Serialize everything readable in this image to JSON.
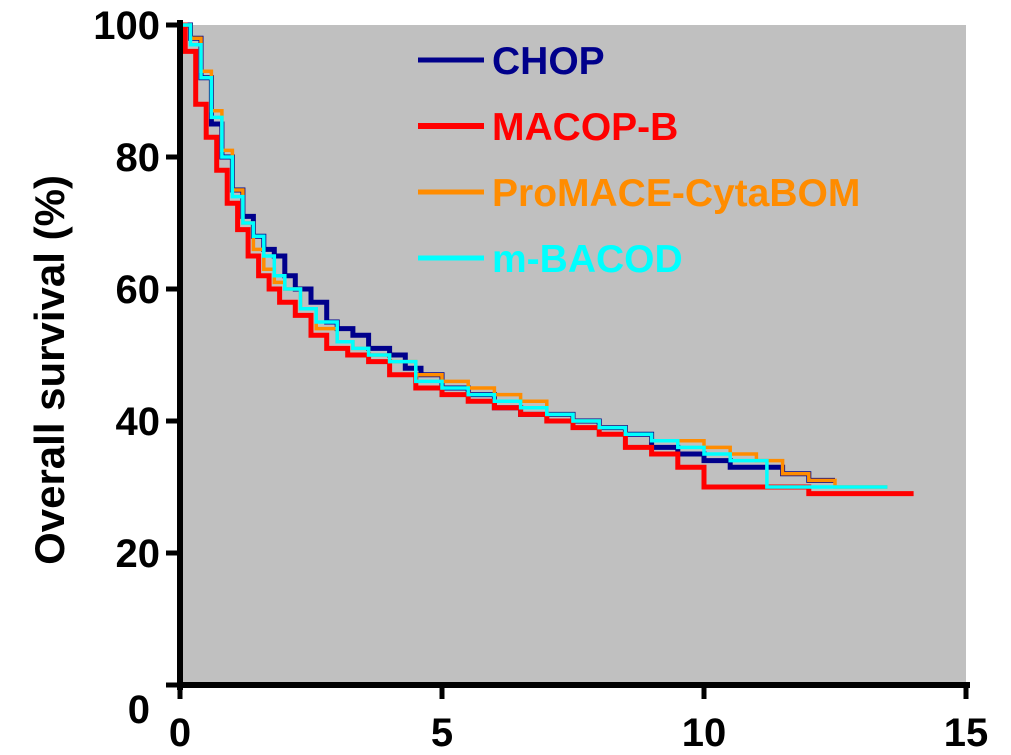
{
  "chart_data": {
    "type": "line",
    "step": true,
    "ylabel": "Overall survival (%)",
    "xlabel": "",
    "xlim": [
      0,
      15
    ],
    "ylim": [
      0,
      100
    ],
    "xticks": [
      "0",
      "5",
      "10",
      "15"
    ],
    "yticks": [
      "0",
      "20",
      "40",
      "60",
      "80",
      "100"
    ],
    "xtick_values": [
      0,
      5,
      10,
      15
    ],
    "ytick_values": [
      0,
      20,
      40,
      60,
      80,
      100
    ],
    "background_color": "#c0c0c0",
    "grid": false,
    "legend_position": "top-right",
    "series": [
      {
        "name": "CHOP",
        "color": "#00008b",
        "points": [
          [
            0,
            100
          ],
          [
            0.2,
            98
          ],
          [
            0.4,
            92
          ],
          [
            0.6,
            85
          ],
          [
            0.8,
            80
          ],
          [
            1.0,
            75
          ],
          [
            1.2,
            71
          ],
          [
            1.4,
            68
          ],
          [
            1.6,
            66
          ],
          [
            1.8,
            65
          ],
          [
            2.0,
            62
          ],
          [
            2.2,
            60
          ],
          [
            2.5,
            58
          ],
          [
            2.8,
            55
          ],
          [
            3.0,
            54
          ],
          [
            3.3,
            53
          ],
          [
            3.6,
            51
          ],
          [
            4.0,
            50
          ],
          [
            4.3,
            48
          ],
          [
            4.6,
            47
          ],
          [
            5.0,
            45
          ],
          [
            5.5,
            44
          ],
          [
            6.0,
            42
          ],
          [
            6.5,
            41
          ],
          [
            7.0,
            41
          ],
          [
            7.5,
            40
          ],
          [
            8.0,
            39
          ],
          [
            8.5,
            38
          ],
          [
            9.0,
            36
          ],
          [
            9.5,
            35
          ],
          [
            10.0,
            34
          ],
          [
            10.5,
            33
          ],
          [
            11.0,
            33
          ],
          [
            11.5,
            32
          ],
          [
            12.0,
            31
          ],
          [
            12.5,
            31
          ]
        ]
      },
      {
        "name": "MACOP-B",
        "color": "#ff0000",
        "points": [
          [
            0,
            100
          ],
          [
            0.1,
            96
          ],
          [
            0.3,
            88
          ],
          [
            0.5,
            83
          ],
          [
            0.7,
            78
          ],
          [
            0.9,
            73
          ],
          [
            1.1,
            69
          ],
          [
            1.3,
            65
          ],
          [
            1.5,
            62
          ],
          [
            1.7,
            60
          ],
          [
            1.9,
            58
          ],
          [
            2.2,
            56
          ],
          [
            2.5,
            53
          ],
          [
            2.8,
            51
          ],
          [
            3.2,
            50
          ],
          [
            3.6,
            49
          ],
          [
            4.0,
            47
          ],
          [
            4.5,
            45
          ],
          [
            5.0,
            44
          ],
          [
            5.5,
            43
          ],
          [
            6.0,
            42
          ],
          [
            6.5,
            41
          ],
          [
            7.0,
            40
          ],
          [
            7.5,
            39
          ],
          [
            8.0,
            38
          ],
          [
            8.5,
            36
          ],
          [
            9.0,
            35
          ],
          [
            9.5,
            33
          ],
          [
            10.0,
            30
          ],
          [
            10.5,
            30
          ],
          [
            11.0,
            30
          ],
          [
            11.5,
            30
          ],
          [
            12.0,
            29
          ],
          [
            12.5,
            29
          ],
          [
            13.0,
            29
          ],
          [
            14.0,
            29
          ]
        ]
      },
      {
        "name": "ProMACE-CytaBOM",
        "color": "#ff8c00",
        "points": [
          [
            0,
            100
          ],
          [
            0.2,
            98
          ],
          [
            0.4,
            93
          ],
          [
            0.6,
            87
          ],
          [
            0.8,
            81
          ],
          [
            1.0,
            75
          ],
          [
            1.2,
            70
          ],
          [
            1.4,
            66
          ],
          [
            1.6,
            63
          ],
          [
            1.8,
            61
          ],
          [
            2.0,
            60
          ],
          [
            2.3,
            57
          ],
          [
            2.6,
            54
          ],
          [
            3.0,
            52
          ],
          [
            3.3,
            51
          ],
          [
            3.6,
            50
          ],
          [
            4.0,
            49
          ],
          [
            4.5,
            47
          ],
          [
            5.0,
            46
          ],
          [
            5.5,
            45
          ],
          [
            6.0,
            44
          ],
          [
            6.5,
            43
          ],
          [
            7.0,
            41
          ],
          [
            7.5,
            40
          ],
          [
            8.0,
            39
          ],
          [
            8.5,
            38
          ],
          [
            9.0,
            37
          ],
          [
            9.5,
            37
          ],
          [
            10.0,
            36
          ],
          [
            10.5,
            35
          ],
          [
            11.0,
            34
          ],
          [
            11.5,
            32
          ],
          [
            12.0,
            31
          ],
          [
            12.5,
            30
          ],
          [
            13.0,
            30
          ],
          [
            13.5,
            30
          ]
        ]
      },
      {
        "name": "m-BACOD",
        "color": "#00ffff",
        "points": [
          [
            0,
            100
          ],
          [
            0.2,
            97
          ],
          [
            0.4,
            92
          ],
          [
            0.6,
            86
          ],
          [
            0.8,
            80
          ],
          [
            1.0,
            74
          ],
          [
            1.2,
            70
          ],
          [
            1.4,
            68
          ],
          [
            1.6,
            65
          ],
          [
            1.8,
            62
          ],
          [
            2.0,
            60
          ],
          [
            2.3,
            57
          ],
          [
            2.6,
            55
          ],
          [
            3.0,
            52
          ],
          [
            3.3,
            51
          ],
          [
            3.6,
            50
          ],
          [
            4.0,
            49
          ],
          [
            4.5,
            46
          ],
          [
            5.0,
            45
          ],
          [
            5.5,
            44
          ],
          [
            6.0,
            43
          ],
          [
            6.5,
            42
          ],
          [
            7.0,
            41
          ],
          [
            7.5,
            40
          ],
          [
            8.0,
            39
          ],
          [
            8.5,
            38
          ],
          [
            9.0,
            37
          ],
          [
            9.5,
            36
          ],
          [
            10.0,
            35
          ],
          [
            10.5,
            34
          ],
          [
            11.0,
            34
          ],
          [
            11.2,
            30
          ],
          [
            11.5,
            30
          ],
          [
            12.0,
            30
          ],
          [
            12.5,
            30
          ],
          [
            13.5,
            30
          ]
        ]
      }
    ]
  }
}
